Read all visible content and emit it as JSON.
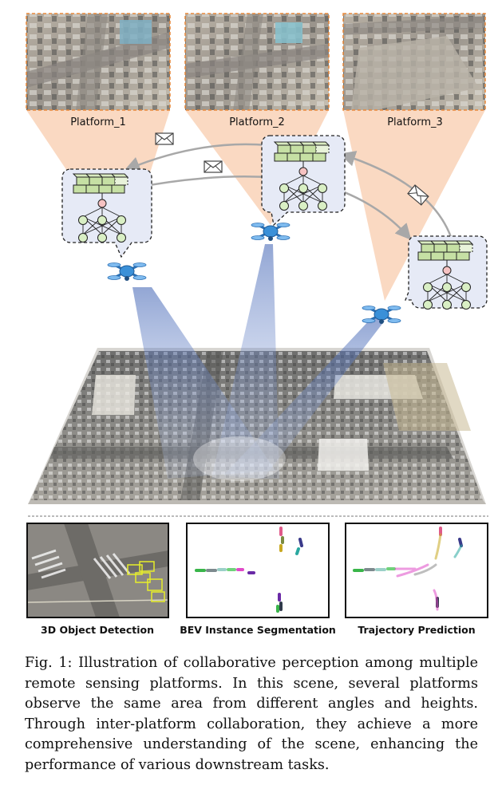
{
  "platforms": [
    {
      "label": "Platform_1"
    },
    {
      "label": "Platform_2"
    },
    {
      "label": "Platform_3"
    }
  ],
  "tasks": [
    {
      "label": "3D Object Detection"
    },
    {
      "label": "BEV Instance Segmentation"
    },
    {
      "label": "Trajectory Prediction"
    }
  ],
  "caption": "Fig. 1: Illustration of collaborative perception among multiple remote sensing platforms. In this scene, several platforms observe the same area from different angles and heights. Through inter-platform collaboration, they achieve a more comprehensive understanding of the scene, enhancing the performance of various downstream tasks.",
  "colors": {
    "view_cone": "#f9d5bb",
    "frame_border": "#e8883a",
    "grid_cell": "#c6e0a4",
    "node": "#d9efc4",
    "node_center": "#f6c2c2",
    "drone": "#3a90d8",
    "sensing_beam": "#3a62b8"
  }
}
